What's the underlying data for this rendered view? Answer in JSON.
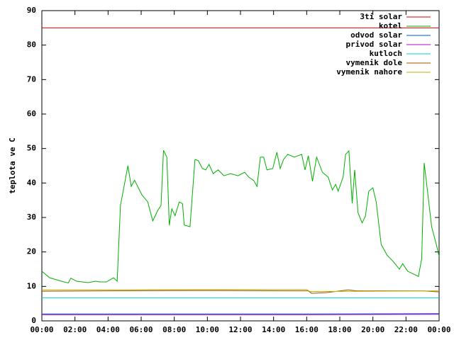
{
  "chart_data": {
    "type": "line",
    "y_label": "teplota ve C",
    "xlim": [
      0,
      24
    ],
    "xticks": [
      {
        "value": 0,
        "label": "00:00"
      },
      {
        "value": 2,
        "label": "02:00"
      },
      {
        "value": 4,
        "label": "04:00"
      },
      {
        "value": 6,
        "label": "06:00"
      },
      {
        "value": 8,
        "label": "08:00"
      },
      {
        "value": 10,
        "label": "10:00"
      },
      {
        "value": 12,
        "label": "12:00"
      },
      {
        "value": 14,
        "label": "14:00"
      },
      {
        "value": 16,
        "label": "16:00"
      },
      {
        "value": 18,
        "label": "18:00"
      },
      {
        "value": 20,
        "label": "20:00"
      },
      {
        "value": 22,
        "label": "22:00"
      },
      {
        "value": 24,
        "label": "00:00"
      }
    ],
    "ylim": [
      0,
      90
    ],
    "yticks": [
      0,
      10,
      20,
      30,
      40,
      50,
      60,
      70,
      80,
      90
    ],
    "legend": "top-right",
    "series": [
      {
        "name": "3ti solar",
        "color": "#e00000",
        "x": [
          0,
          24
        ],
        "values": [
          85,
          85
        ]
      },
      {
        "name": "kotel",
        "color": "#00b000",
        "x": [
          0,
          0.47,
          1.33,
          1.6,
          1.75,
          2.1,
          2.8,
          3.25,
          3.5,
          3.9,
          4.33,
          4.55,
          4.75,
          5.2,
          5.4,
          5.6,
          6.05,
          6.4,
          6.7,
          7,
          7.2,
          7.35,
          7.55,
          7.7,
          7.85,
          8.05,
          8.3,
          8.5,
          8.6,
          8.95,
          9.25,
          9.45,
          9.7,
          9.9,
          10.1,
          10.35,
          10.65,
          11,
          11.4,
          11.85,
          12.25,
          12.5,
          12.8,
          13,
          13.2,
          13.4,
          13.6,
          13.95,
          14.2,
          14.4,
          14.6,
          14.85,
          15.25,
          15.7,
          15.9,
          16.1,
          16.35,
          16.6,
          16.95,
          17.3,
          17.55,
          17.75,
          17.9,
          18.2,
          18.35,
          18.55,
          18.75,
          18.9,
          19.1,
          19.35,
          19.55,
          19.75,
          20,
          20.2,
          20.5,
          20.85,
          21.25,
          21.6,
          21.8,
          22.1,
          22.75,
          22.95,
          23.1,
          23.3,
          23.55,
          23.85,
          24
        ],
        "values": [
          14.4,
          12.5,
          11.3,
          11,
          12.4,
          11.5,
          11.1,
          11.5,
          11.3,
          11.3,
          12.5,
          11.5,
          33.5,
          45,
          39,
          40.8,
          36.5,
          34.5,
          29,
          32,
          33.5,
          49.5,
          47.5,
          27.7,
          32.5,
          30.5,
          34.5,
          34,
          27.8,
          27.3,
          46.8,
          46.5,
          44.2,
          43.8,
          45.4,
          42.7,
          43.8,
          42.1,
          42.7,
          42.1,
          43.1,
          41.7,
          40.7,
          39,
          47.5,
          47.5,
          43.8,
          44.2,
          48.9,
          44.2,
          46.8,
          48.3,
          47.5,
          48.3,
          43.8,
          47.9,
          40.5,
          47.5,
          43.1,
          41.7,
          38,
          39.6,
          37.6,
          41.7,
          48.3,
          49.3,
          34.1,
          43.8,
          31.4,
          28.4,
          30.4,
          37.6,
          38.6,
          34.5,
          22.2,
          19.1,
          17.1,
          15,
          16.6,
          14.4,
          12.9,
          18.1,
          45.8,
          37.6,
          27.3,
          21.8,
          18.7
        ]
      },
      {
        "name": "odvod solar",
        "color": "#0050e0",
        "x": [
          0,
          11,
          16,
          24
        ],
        "values": [
          2,
          2,
          2,
          2.1
        ]
      },
      {
        "name": "privod solar",
        "color": "#c000c0",
        "x": [
          0,
          11,
          16,
          24
        ],
        "values": [
          1.8,
          1.8,
          1.8,
          1.9
        ]
      },
      {
        "name": "kutloch",
        "color": "#00d0d0",
        "x": [
          0,
          24
        ],
        "values": [
          6.7,
          6.7
        ]
      },
      {
        "name": "vymenik dole",
        "color": "#a05000",
        "x": [
          0,
          8,
          11,
          16.1,
          16.3,
          17.2,
          18.5,
          19,
          23,
          24
        ],
        "values": [
          8.6,
          8.8,
          8.8,
          8.7,
          8,
          8.2,
          9,
          8.7,
          8.7,
          8.4
        ]
      },
      {
        "name": "vymenik nahore",
        "color": "#c0b000",
        "x": [
          0,
          16,
          16.2,
          24
        ],
        "values": [
          9,
          9.1,
          8.5,
          8.7
        ]
      }
    ]
  }
}
